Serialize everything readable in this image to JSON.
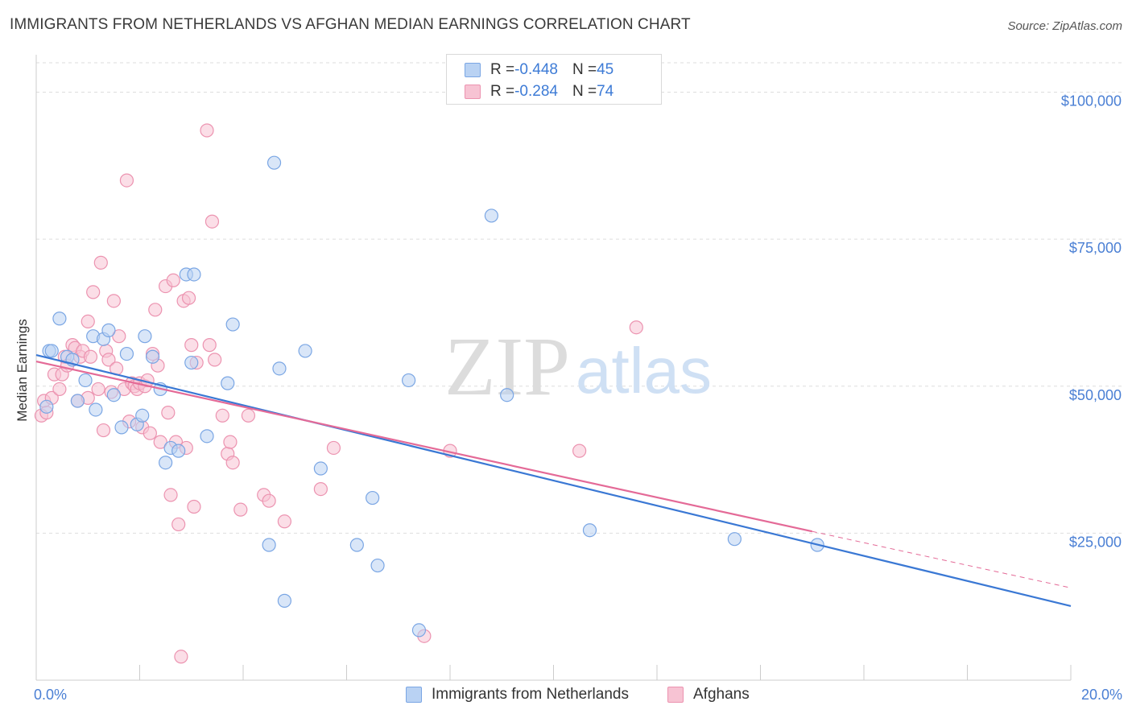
{
  "title": "IMMIGRANTS FROM NETHERLANDS VS AFGHAN MEDIAN EARNINGS CORRELATION CHART",
  "source": "Source: ZipAtlas.com",
  "watermark": {
    "zip": "ZIP",
    "atlas": "atlas"
  },
  "legend": {
    "r_label": "R = ",
    "n_label": "N = ",
    "rows": [
      {
        "r": "-0.448",
        "n": "45"
      },
      {
        "r": "-0.284",
        "n": "74"
      }
    ]
  },
  "colors": {
    "blue_fill": "#b9d2f3",
    "blue_stroke": "#7aa6e4",
    "blue_line": "#3a78d4",
    "pink_fill": "#f7c3d3",
    "pink_stroke": "#ec93b0",
    "pink_line": "#e46a97",
    "tick_label": "#4a7fd4",
    "grid": "#dddddd"
  },
  "chart_data": {
    "type": "scatter",
    "title": "IMMIGRANTS FROM NETHERLANDS VS AFGHAN MEDIAN EARNINGS CORRELATION CHART",
    "xlabel": "",
    "ylabel": "Median Earnings",
    "xlim": [
      0,
      20
    ],
    "ylim": [
      0,
      105000
    ],
    "x_tick_labels": [
      "0.0%",
      "20.0%"
    ],
    "y_ticks": [
      25000,
      50000,
      75000,
      100000
    ],
    "y_tick_labels": [
      "$25,000",
      "$50,000",
      "$75,000",
      "$100,000"
    ],
    "grid": true,
    "legend_placement": "bottom",
    "series": [
      {
        "name": "Immigrants from Netherlands",
        "color": "#7aa6e4",
        "points": [
          [
            0.2,
            46500
          ],
          [
            0.25,
            56000
          ],
          [
            0.3,
            56000
          ],
          [
            0.45,
            61500
          ],
          [
            0.6,
            55000
          ],
          [
            0.7,
            54500
          ],
          [
            0.8,
            47500
          ],
          [
            0.95,
            51000
          ],
          [
            1.1,
            58500
          ],
          [
            1.15,
            46000
          ],
          [
            1.3,
            58000
          ],
          [
            1.4,
            59500
          ],
          [
            1.5,
            48500
          ],
          [
            1.65,
            43000
          ],
          [
            1.75,
            55500
          ],
          [
            1.95,
            43500
          ],
          [
            2.05,
            45000
          ],
          [
            2.1,
            58500
          ],
          [
            2.25,
            55000
          ],
          [
            2.4,
            49500
          ],
          [
            2.5,
            37000
          ],
          [
            2.6,
            39500
          ],
          [
            2.75,
            39000
          ],
          [
            2.9,
            69000
          ],
          [
            3.0,
            54000
          ],
          [
            3.05,
            69000
          ],
          [
            3.3,
            41500
          ],
          [
            3.7,
            50500
          ],
          [
            3.8,
            60500
          ],
          [
            4.6,
            88000
          ],
          [
            4.5,
            23000
          ],
          [
            4.7,
            53000
          ],
          [
            4.8,
            13500
          ],
          [
            5.2,
            56000
          ],
          [
            5.5,
            36000
          ],
          [
            6.2,
            23000
          ],
          [
            6.5,
            31000
          ],
          [
            6.6,
            19500
          ],
          [
            7.2,
            51000
          ],
          [
            7.4,
            8500
          ],
          [
            8.8,
            79000
          ],
          [
            9.1,
            48500
          ],
          [
            10.7,
            25500
          ],
          [
            13.5,
            24000
          ],
          [
            15.1,
            23000
          ]
        ]
      },
      {
        "name": "Afghans",
        "color": "#ec93b0",
        "points": [
          [
            0.1,
            45000
          ],
          [
            0.15,
            47500
          ],
          [
            0.2,
            45500
          ],
          [
            0.3,
            48000
          ],
          [
            0.35,
            52000
          ],
          [
            0.45,
            49500
          ],
          [
            0.5,
            52000
          ],
          [
            0.55,
            55000
          ],
          [
            0.6,
            53500
          ],
          [
            0.7,
            57000
          ],
          [
            0.75,
            56500
          ],
          [
            0.8,
            47500
          ],
          [
            0.85,
            55000
          ],
          [
            0.9,
            56000
          ],
          [
            1.0,
            48000
          ],
          [
            1.0,
            61000
          ],
          [
            1.05,
            55000
          ],
          [
            1.1,
            66000
          ],
          [
            1.2,
            49500
          ],
          [
            1.25,
            71000
          ],
          [
            1.3,
            42500
          ],
          [
            1.35,
            56000
          ],
          [
            1.4,
            54500
          ],
          [
            1.45,
            49000
          ],
          [
            1.55,
            53000
          ],
          [
            1.5,
            64500
          ],
          [
            1.6,
            58500
          ],
          [
            1.7,
            49500
          ],
          [
            1.75,
            85000
          ],
          [
            1.8,
            44000
          ],
          [
            1.85,
            50500
          ],
          [
            1.9,
            50000
          ],
          [
            1.95,
            49500
          ],
          [
            2.0,
            50500
          ],
          [
            2.05,
            43000
          ],
          [
            2.1,
            50000
          ],
          [
            2.15,
            51000
          ],
          [
            2.2,
            42000
          ],
          [
            2.25,
            55500
          ],
          [
            2.3,
            63000
          ],
          [
            2.35,
            53500
          ],
          [
            2.4,
            40500
          ],
          [
            2.5,
            67000
          ],
          [
            2.55,
            45500
          ],
          [
            2.6,
            31500
          ],
          [
            2.65,
            68000
          ],
          [
            2.7,
            40500
          ],
          [
            2.75,
            26500
          ],
          [
            2.8,
            4000
          ],
          [
            2.85,
            64500
          ],
          [
            2.9,
            39500
          ],
          [
            2.95,
            65000
          ],
          [
            3.0,
            57000
          ],
          [
            3.05,
            29500
          ],
          [
            3.1,
            54000
          ],
          [
            3.3,
            93500
          ],
          [
            3.35,
            57000
          ],
          [
            3.4,
            78000
          ],
          [
            3.45,
            54500
          ],
          [
            3.6,
            45000
          ],
          [
            3.7,
            38500
          ],
          [
            3.75,
            40500
          ],
          [
            3.8,
            37000
          ],
          [
            3.95,
            29000
          ],
          [
            4.1,
            45000
          ],
          [
            4.4,
            31500
          ],
          [
            4.5,
            30500
          ],
          [
            4.8,
            27000
          ],
          [
            5.5,
            32500
          ],
          [
            5.75,
            39500
          ],
          [
            7.5,
            7500
          ],
          [
            8.0,
            39000
          ],
          [
            10.5,
            39000
          ],
          [
            11.6,
            60000
          ]
        ]
      }
    ],
    "trend_lines": [
      {
        "series": "Immigrants from Netherlands",
        "x": [
          0,
          20
        ],
        "y": [
          55300,
          12600
        ]
      },
      {
        "series": "Afghans",
        "x": [
          0,
          15
        ],
        "y": [
          54200,
          25300
        ],
        "dashed_extension_to": [
          20,
          15700
        ]
      }
    ]
  },
  "bottom_legend": [
    {
      "label": "Immigrants from Netherlands"
    },
    {
      "label": "Afghans"
    }
  ]
}
